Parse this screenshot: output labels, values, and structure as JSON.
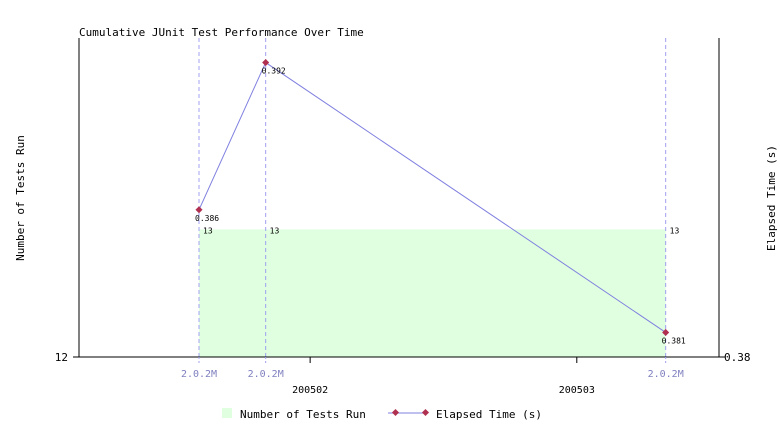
{
  "chart_data": {
    "type": "line",
    "title": "Cumulative JUnit Test Performance Over Time",
    "ylabel_left": "Number of Tests Run",
    "ylabel_right": "Elapsed Time (s)",
    "xlabel": "",
    "left_axis": {
      "min": 12,
      "max": 14.5,
      "tick_labels": [
        "12"
      ]
    },
    "right_axis": {
      "min": 0.38,
      "max": 0.393,
      "tick_labels": [
        "0.38"
      ]
    },
    "x_ticks": [
      {
        "label": "200502",
        "x": 2.667
      },
      {
        "label": "200503",
        "x": 6.667
      }
    ],
    "points": [
      {
        "version": "2.0.2M",
        "x": 1.0,
        "tests": 13,
        "elapsed": 0.386,
        "tests_label": "13",
        "elapsed_label": "0.386"
      },
      {
        "version": "2.0.2M",
        "x": 2.0,
        "tests": 13,
        "elapsed": 0.392,
        "tests_label": "13",
        "elapsed_label": "0.392"
      },
      {
        "version": "2.0.2M",
        "x": 8.0,
        "tests": 13,
        "elapsed": 0.381,
        "tests_label": "13",
        "elapsed_label": "0.381"
      }
    ],
    "x_range": [
      -0.8,
      8.8
    ],
    "series": [
      {
        "name": "Number of Tests Run",
        "type": "area",
        "color": "#e0ffe0"
      },
      {
        "name": "Elapsed Time (s)",
        "type": "line",
        "color": "#8080e0",
        "marker_color": "#b03050"
      }
    ],
    "legend_position": "bottom-center",
    "grid": false,
    "marker_line_color": "#a0a0f0",
    "version_label_color": "#8080c0"
  }
}
